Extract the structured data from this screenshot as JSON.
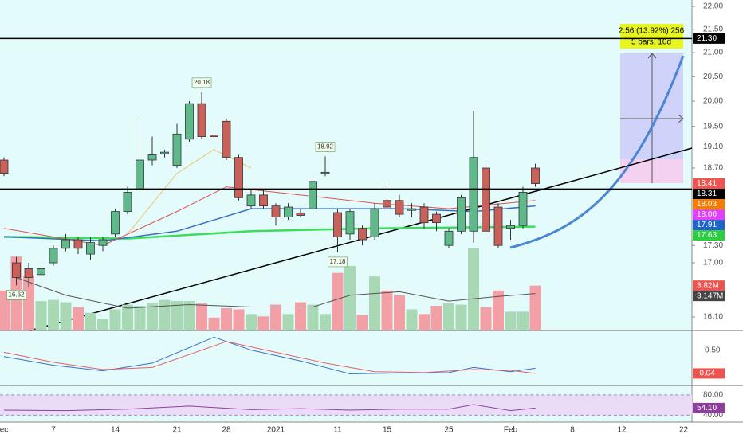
{
  "chart_data": {
    "type": "candlestick",
    "log_scale": true,
    "categories": [
      "ec",
      null,
      null,
      null,
      "7",
      null,
      null,
      null,
      null,
      "14",
      null,
      null,
      null,
      null,
      "21",
      null,
      null,
      null,
      "28",
      null,
      null,
      null,
      "2021",
      null,
      null,
      null,
      null,
      "11",
      null,
      null,
      null,
      "15",
      null,
      null,
      null,
      null,
      "25",
      null,
      null,
      null,
      null,
      "Feb",
      null,
      null,
      null,
      null,
      "8",
      null,
      null,
      null,
      "12",
      null,
      null,
      null,
      null,
      "22"
    ],
    "open": [
      18.85,
      17.0,
      16.9,
      16.8,
      17.0,
      17.25,
      17.4,
      17.15,
      17.3,
      17.5,
      17.9,
      18.3,
      18.85,
      18.97,
      18.75,
      19.25,
      19.95,
      19.33,
      19.6,
      18.9,
      18.0,
      18.2,
      18.0,
      17.8,
      17.87,
      17.95,
      18.6,
      17.88,
      17.5,
      17.6,
      17.45,
      18.1,
      18.1,
      17.92,
      17.98,
      17.85,
      17.3,
      17.55,
      17.55,
      18.7,
      17.98,
      17.6,
      17.65,
      18.7,
      null,
      null,
      null,
      null,
      null,
      null,
      null,
      null,
      null,
      null,
      null,
      null
    ],
    "high": [
      18.9,
      17.1,
      17.0,
      16.95,
      17.3,
      17.5,
      17.45,
      17.45,
      17.45,
      17.95,
      18.35,
      19.65,
      19.3,
      19.05,
      19.55,
      20.0,
      20.18,
      19.6,
      19.65,
      18.95,
      18.3,
      18.3,
      18.05,
      18.05,
      17.95,
      18.55,
      18.92,
      17.95,
      17.95,
      17.65,
      18.05,
      18.5,
      18.2,
      18.05,
      18.05,
      17.9,
      17.6,
      18.2,
      19.8,
      18.8,
      18.05,
      17.75,
      18.35,
      18.78,
      null,
      null,
      null,
      null,
      null,
      null,
      null,
      null,
      null,
      null,
      null,
      null
    ],
    "low": [
      18.55,
      16.62,
      16.6,
      16.75,
      16.95,
      17.2,
      17.15,
      17.05,
      17.2,
      17.45,
      17.85,
      18.25,
      18.75,
      18.9,
      18.7,
      19.2,
      19.25,
      19.25,
      18.85,
      18.1,
      17.95,
      17.95,
      17.65,
      17.75,
      17.8,
      17.9,
      18.55,
      17.18,
      17.4,
      17.3,
      17.4,
      17.9,
      17.8,
      17.8,
      17.6,
      17.55,
      17.25,
      17.5,
      17.35,
      17.45,
      17.25,
      17.4,
      17.6,
      18.35,
      null,
      null,
      null,
      null,
      null,
      null,
      null,
      null,
      null,
      null,
      null,
      null
    ],
    "close": [
      18.6,
      16.75,
      16.75,
      16.9,
      17.25,
      17.4,
      17.25,
      17.35,
      17.4,
      17.9,
      18.25,
      18.85,
      18.95,
      19.0,
      19.35,
      19.95,
      19.3,
      19.3,
      18.9,
      18.15,
      18.2,
      18.0,
      17.8,
      17.98,
      17.83,
      18.45,
      18.62,
      17.45,
      17.9,
      17.4,
      17.95,
      17.98,
      17.85,
      17.95,
      17.7,
      17.7,
      17.55,
      18.15,
      18.9,
      17.55,
      17.3,
      17.65,
      18.25,
      18.41,
      null,
      null,
      null,
      null,
      null,
      null,
      null,
      null,
      null,
      null,
      null,
      null
    ],
    "volume": [
      3.4,
      6.3,
      4.7,
      2.5,
      2.6,
      2.4,
      2.0,
      1.5,
      1.0,
      1.8,
      2.2,
      2.1,
      2.3,
      2.6,
      2.5,
      2.5,
      2.3,
      1.1,
      1.9,
      1.8,
      1.4,
      1.2,
      2.2,
      1.4,
      2.4,
      2.2,
      1.4,
      4.9,
      5.5,
      1.3,
      4.6,
      3.4,
      3.0,
      1.8,
      1.4,
      2.1,
      2.3,
      2.2,
      7.0,
      2.0,
      3.4,
      1.6,
      1.6,
      3.82,
      null,
      null,
      null,
      null,
      null,
      null,
      null,
      null,
      null,
      null,
      null,
      null
    ],
    "up_color": "#5fb98a",
    "down_color": "#c8615a",
    "volume_up_color": "#a8d8b4",
    "volume_down_color": "#f2a0a6",
    "ylim": [
      16.1,
      22
    ],
    "yticks": [
      {
        "value": 22,
        "label": "22.00"
      },
      {
        "value": 21.5,
        "label": "21.50"
      },
      {
        "value": 21,
        "label": "21.00"
      },
      {
        "value": 20.5,
        "label": "20.50"
      },
      {
        "value": 20,
        "label": "20.00"
      },
      {
        "value": 19.5,
        "label": "19.50"
      },
      {
        "value": 19.1,
        "label": "19.10"
      },
      {
        "value": 18.7,
        "label": "18.70"
      },
      {
        "value": 17.3,
        "label": "17.30"
      },
      {
        "value": 17,
        "label": "17.00"
      },
      {
        "value": 16.1,
        "label": "16.10"
      }
    ],
    "y2lim": [
      0,
      27.6
    ],
    "price_labels": [
      {
        "value": 21.3,
        "label": "21.30",
        "color": "#000000",
        "line": true
      },
      {
        "value": 18.41,
        "label": "18.41",
        "color": "#ef5350"
      },
      {
        "value": 18.31,
        "label": "18.31",
        "color": "#000000",
        "line": true
      },
      {
        "value": 18.03,
        "label": "18.03",
        "color": "#f57c00"
      },
      {
        "value": 18.0,
        "label": "18.00",
        "color": "#e040fb"
      },
      {
        "value": 17.91,
        "label": "17.91",
        "color": "#1e63c8"
      },
      {
        "value": 17.63,
        "label": "17.63",
        "color": "#2ecc40"
      }
    ],
    "volume_labels": [
      {
        "value": 3.82,
        "label": "3.82M",
        "color": "#ef5350"
      },
      {
        "value": 3.147,
        "label": "3.147M",
        "color": "#444444"
      }
    ],
    "annotations": [
      {
        "text": "20.18",
        "index": 16
      },
      {
        "text": "18.92",
        "index": 26
      },
      {
        "text": "17.18",
        "index": 27,
        "below": true
      },
      {
        "text": "16.62",
        "index": 1,
        "below": true
      }
    ],
    "ma": [
      {
        "color": "#3ddc5a",
        "width": 2.5,
        "x": [
          0,
          10,
          20,
          30,
          43
        ],
        "values": [
          17.45,
          17.42,
          17.55,
          17.6,
          17.63
        ]
      },
      {
        "color": "#3b6fc4",
        "width": 1.5,
        "x": [
          0,
          8,
          14,
          20,
          26,
          32,
          38,
          43
        ],
        "values": [
          17.45,
          17.38,
          17.55,
          17.95,
          17.95,
          17.95,
          17.9,
          18.0
        ]
      },
      {
        "color": "#d9534f",
        "width": 1,
        "x": [
          0,
          8,
          14,
          18,
          24,
          30,
          36,
          43
        ],
        "values": [
          17.6,
          17.3,
          17.9,
          18.35,
          18.2,
          18.05,
          17.95,
          18.1
        ]
      },
      {
        "color": "#e8c46a",
        "width": 1,
        "x": [
          10,
          14,
          17,
          20
        ],
        "values": [
          17.5,
          18.6,
          19.05,
          18.7
        ]
      }
    ],
    "volume_ma": {
      "color": "#555555",
      "x": [
        1,
        5,
        10,
        15,
        20,
        25,
        28,
        32,
        36,
        40,
        43
      ],
      "values": [
        4.5,
        3.0,
        1.9,
        2.2,
        2.0,
        2.0,
        3.0,
        3.3,
        2.5,
        2.9,
        3.147
      ]
    },
    "macd": {
      "ylim": [
        -0.3,
        0.9
      ],
      "yticks": [
        {
          "value": 0.5,
          "label": "0.50"
        }
      ],
      "value_label": {
        "value": -0.04,
        "label": "-0.04"
      },
      "series": [
        {
          "color": "#3b6fc4",
          "x": [
            0,
            4,
            8,
            12,
            17,
            20,
            24,
            28,
            32,
            36,
            38,
            41,
            43
          ],
          "values": [
            0.35,
            0.15,
            0.02,
            0.2,
            0.8,
            0.5,
            0.25,
            -0.05,
            -0.03,
            -0.02,
            0.1,
            0.0,
            0.08
          ]
        },
        {
          "color": "#e0606a",
          "x": [
            0,
            4,
            8,
            12,
            18,
            22,
            26,
            30,
            34,
            38,
            41,
            43
          ],
          "values": [
            0.45,
            0.22,
            0.05,
            0.1,
            0.7,
            0.45,
            0.2,
            0.0,
            -0.02,
            0.05,
            0.03,
            -0.04
          ]
        }
      ]
    },
    "rsi": {
      "ylim": [
        28,
        94
      ],
      "yticks": [
        {
          "value": 40,
          "label": "40.00"
        },
        {
          "value": 80,
          "label": "80.00"
        }
      ],
      "value_label": {
        "value": 54.1,
        "label": "54.10"
      },
      "color": "#8e3f9e",
      "x": [
        0,
        5,
        10,
        15,
        20,
        24,
        28,
        32,
        36,
        38,
        41,
        43
      ],
      "values": [
        50,
        49,
        52,
        58,
        51,
        53,
        50,
        52,
        52,
        61,
        49,
        54.1
      ]
    },
    "measure": {
      "text": "2.56 (13.92%) 256",
      "subtext": "5 bars, 10d"
    }
  }
}
